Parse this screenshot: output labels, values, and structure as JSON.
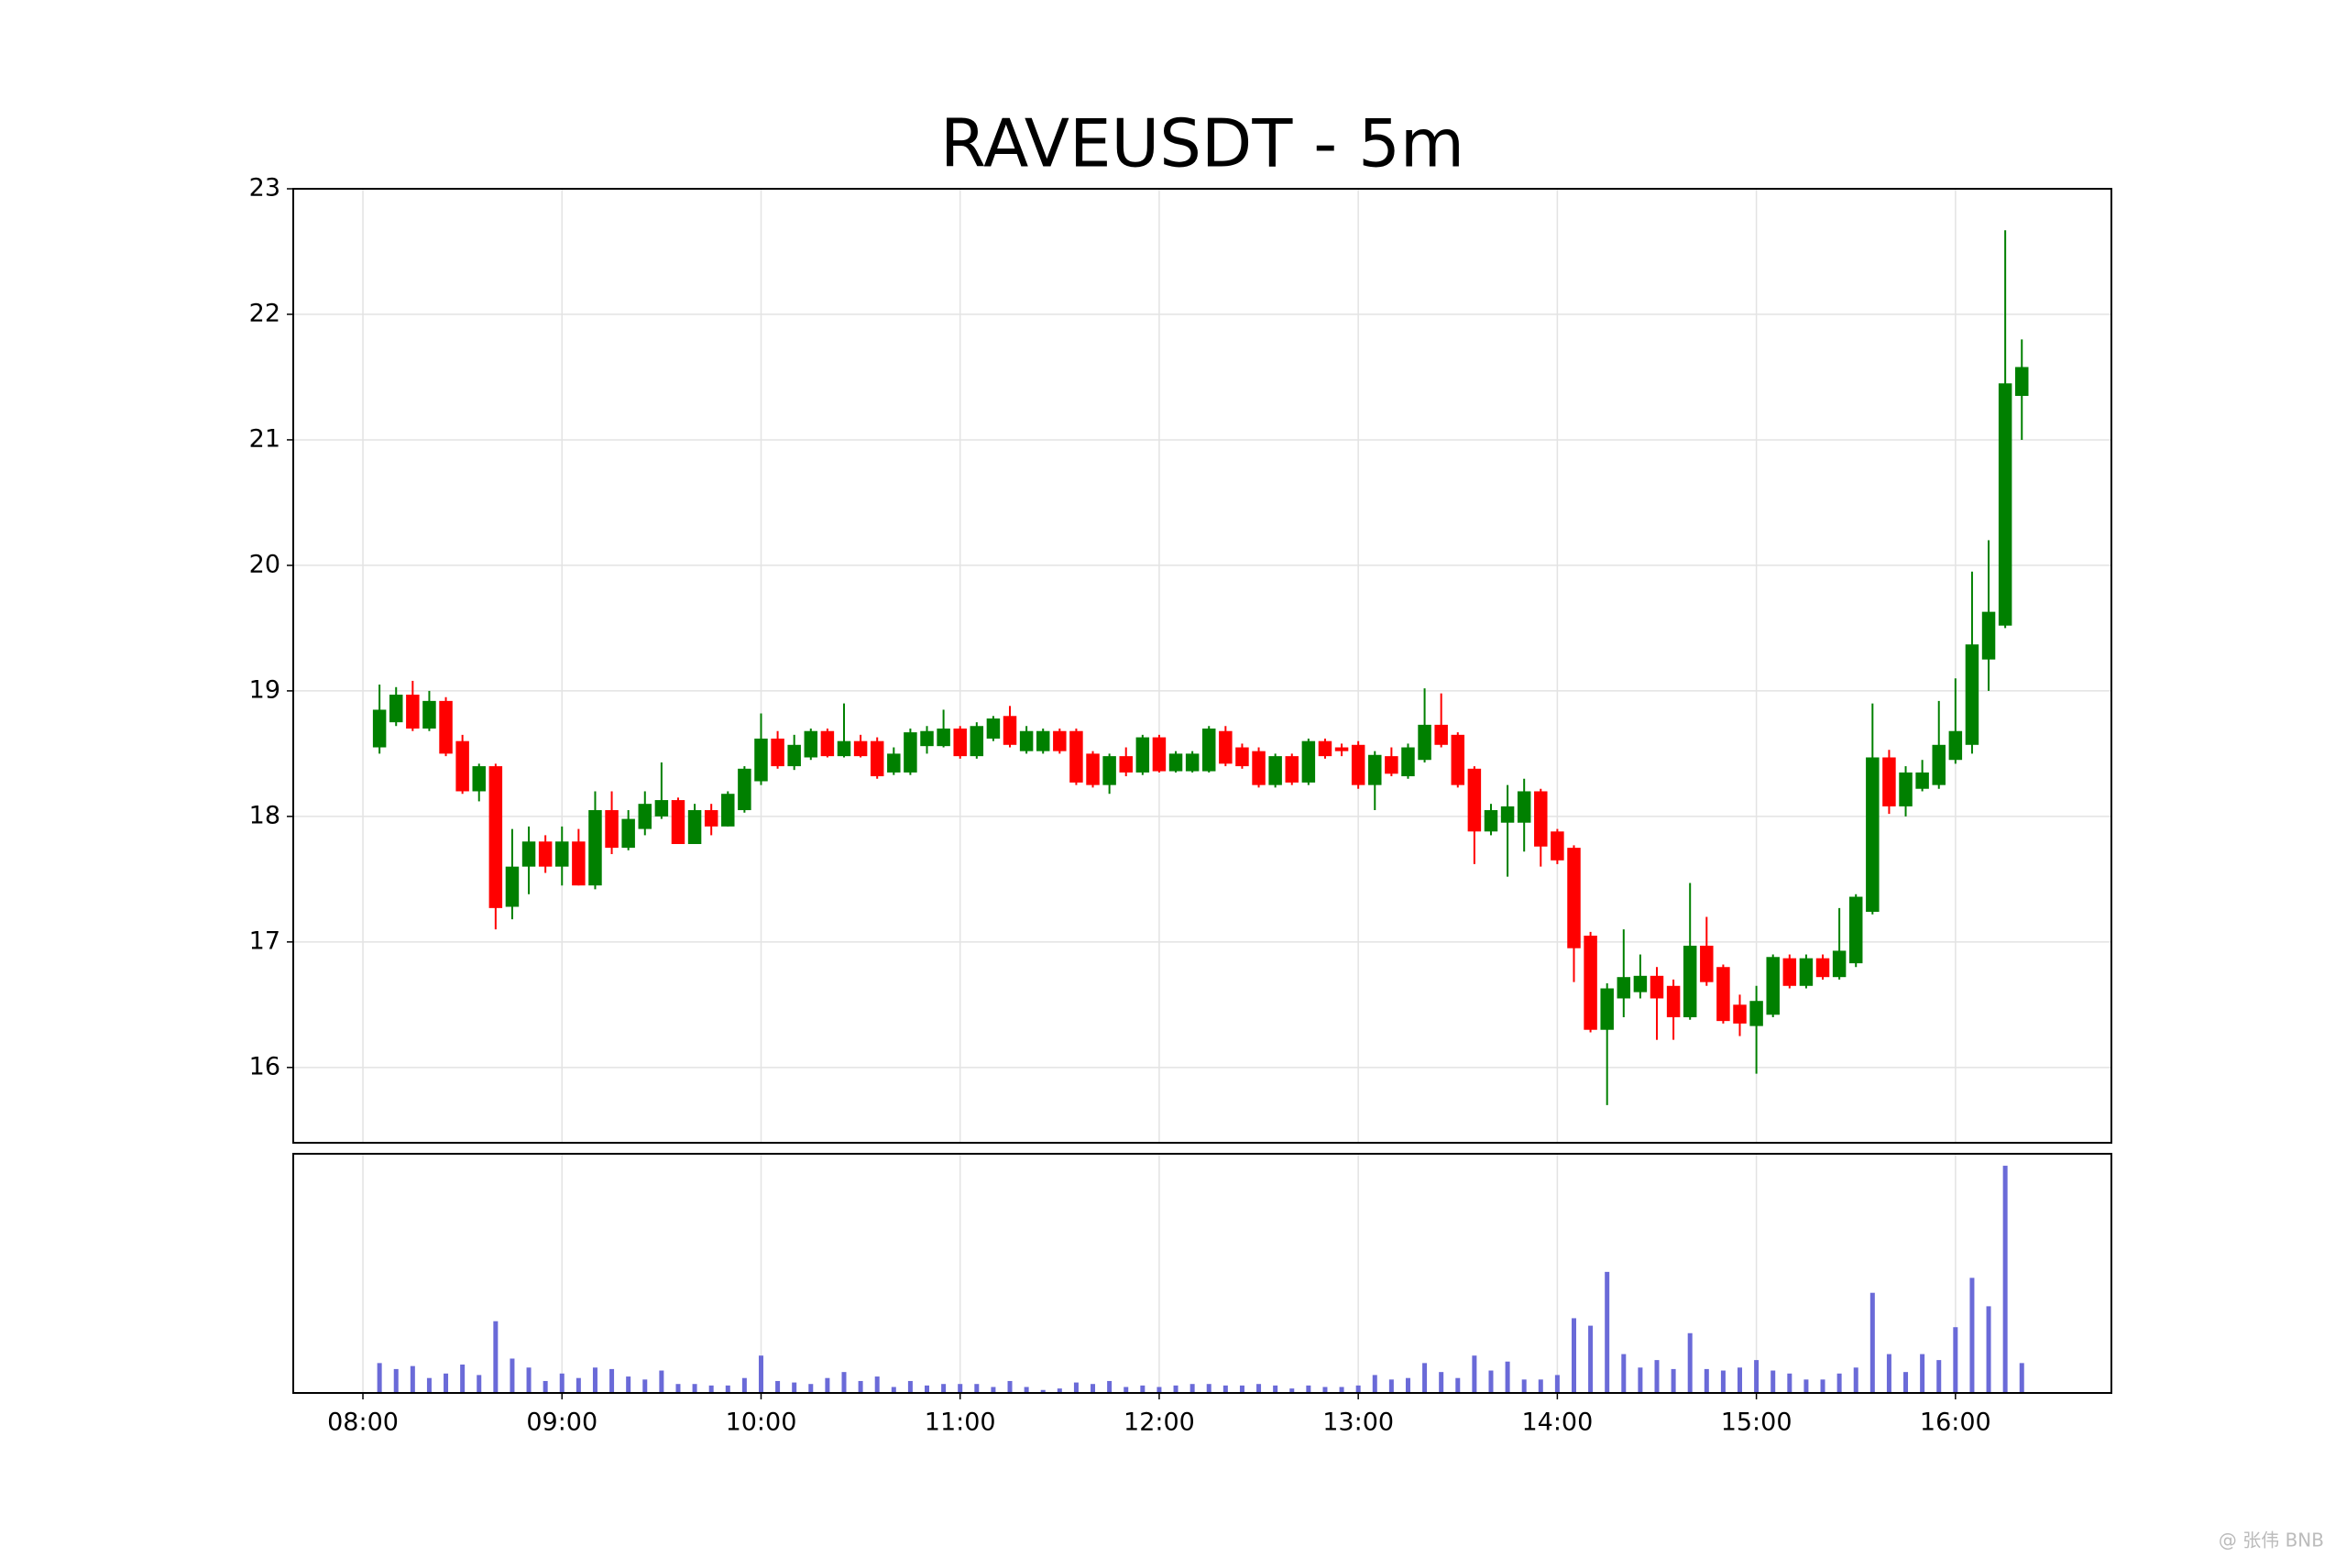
{
  "chart_data": {
    "type": "candlestick",
    "title": "RAVEUSDT - 5m",
    "watermark": "@ 张伟 BNB",
    "x": [
      "08:05",
      "08:10",
      "08:15",
      "08:20",
      "08:25",
      "08:30",
      "08:35",
      "08:40",
      "08:45",
      "08:50",
      "08:55",
      "09:00",
      "09:05",
      "09:10",
      "09:15",
      "09:20",
      "09:25",
      "09:30",
      "09:35",
      "09:40",
      "09:45",
      "09:50",
      "09:55",
      "10:00",
      "10:05",
      "10:10",
      "10:15",
      "10:20",
      "10:25",
      "10:30",
      "10:35",
      "10:40",
      "10:45",
      "10:50",
      "10:55",
      "11:00",
      "11:05",
      "11:10",
      "11:15",
      "11:20",
      "11:25",
      "11:30",
      "11:35",
      "11:40",
      "11:45",
      "11:50",
      "11:55",
      "12:00",
      "12:05",
      "12:10",
      "12:15",
      "12:20",
      "12:25",
      "12:30",
      "12:35",
      "12:40",
      "12:45",
      "12:50",
      "12:55",
      "13:00",
      "13:05",
      "13:10",
      "13:15",
      "13:20",
      "13:25",
      "13:30",
      "13:35",
      "13:40",
      "13:45",
      "13:50",
      "13:55",
      "14:00",
      "14:05",
      "14:10",
      "14:15",
      "14:20",
      "14:25",
      "14:30",
      "14:35",
      "14:40",
      "14:45",
      "14:50",
      "14:55",
      "15:00",
      "15:05",
      "15:10",
      "15:15",
      "15:20",
      "15:25",
      "15:30",
      "15:35",
      "15:40",
      "15:45",
      "15:50",
      "15:55",
      "16:00",
      "16:05",
      "16:10",
      "16:15",
      "16:20"
    ],
    "open": [
      18.55,
      18.75,
      18.97,
      18.7,
      18.92,
      18.6,
      18.2,
      18.4,
      17.28,
      17.6,
      17.8,
      17.6,
      17.8,
      17.45,
      18.05,
      17.75,
      17.9,
      18.0,
      18.13,
      17.78,
      18.05,
      17.92,
      18.05,
      18.28,
      18.62,
      18.4,
      18.47,
      18.68,
      18.48,
      18.6,
      18.6,
      18.35,
      18.35,
      18.56,
      18.56,
      18.7,
      18.48,
      18.62,
      18.8,
      18.52,
      18.52,
      18.68,
      18.68,
      18.5,
      18.25,
      18.48,
      18.35,
      18.63,
      18.36,
      18.36,
      18.36,
      18.68,
      18.55,
      18.52,
      18.25,
      18.48,
      18.27,
      18.6,
      18.55,
      18.57,
      18.25,
      18.48,
      18.32,
      18.45,
      18.73,
      18.65,
      18.38,
      17.88,
      17.95,
      17.95,
      18.2,
      17.88,
      17.75,
      17.05,
      16.3,
      16.55,
      16.6,
      16.73,
      16.65,
      16.4,
      16.97,
      16.8,
      16.5,
      16.33,
      16.42,
      16.87,
      16.65,
      16.87,
      16.72,
      16.83,
      17.24,
      18.47,
      18.08,
      18.22,
      18.25,
      18.45,
      18.57,
      19.25,
      19.52,
      21.35
    ],
    "high": [
      19.05,
      19.03,
      19.08,
      19.0,
      18.95,
      18.65,
      18.42,
      18.42,
      17.9,
      17.92,
      17.85,
      17.92,
      17.9,
      18.2,
      18.2,
      18.05,
      18.2,
      18.43,
      18.15,
      18.1,
      18.1,
      18.2,
      18.4,
      18.82,
      18.68,
      18.65,
      18.7,
      18.7,
      18.9,
      18.65,
      18.63,
      18.55,
      18.7,
      18.72,
      18.85,
      18.72,
      18.75,
      18.8,
      18.88,
      18.72,
      18.7,
      18.7,
      18.7,
      18.52,
      18.5,
      18.55,
      18.65,
      18.65,
      18.52,
      18.52,
      18.72,
      18.72,
      18.58,
      18.55,
      18.5,
      18.5,
      18.62,
      18.62,
      18.58,
      18.6,
      18.52,
      18.55,
      18.58,
      19.02,
      18.98,
      18.67,
      18.4,
      18.1,
      18.25,
      18.3,
      18.22,
      17.9,
      17.77,
      17.08,
      16.67,
      17.1,
      16.9,
      16.8,
      16.7,
      17.47,
      17.2,
      16.82,
      16.58,
      16.65,
      16.9,
      16.9,
      16.9,
      16.9,
      17.27,
      17.38,
      18.9,
      18.53,
      18.4,
      18.45,
      18.92,
      19.1,
      19.95,
      20.2,
      22.67,
      21.8
    ],
    "low": [
      18.5,
      18.72,
      18.68,
      18.68,
      18.48,
      18.18,
      18.12,
      17.1,
      17.18,
      17.38,
      17.55,
      17.45,
      17.45,
      17.42,
      17.7,
      17.73,
      17.85,
      17.98,
      17.78,
      17.78,
      17.85,
      17.92,
      18.03,
      18.25,
      18.38,
      18.37,
      18.45,
      18.47,
      18.47,
      18.47,
      18.3,
      18.33,
      18.33,
      18.5,
      18.55,
      18.46,
      18.46,
      18.6,
      18.55,
      18.5,
      18.5,
      18.5,
      18.25,
      18.23,
      18.18,
      18.32,
      18.33,
      18.35,
      18.35,
      18.35,
      18.35,
      18.4,
      18.38,
      18.23,
      18.23,
      18.25,
      18.25,
      18.46,
      18.48,
      18.22,
      18.05,
      18.32,
      18.3,
      18.43,
      18.55,
      18.23,
      17.62,
      17.85,
      17.52,
      17.72,
      17.6,
      17.62,
      16.68,
      16.28,
      15.7,
      16.4,
      16.55,
      16.22,
      16.22,
      16.38,
      16.65,
      16.35,
      16.25,
      15.95,
      16.4,
      16.63,
      16.63,
      16.7,
      16.7,
      16.8,
      17.22,
      18.02,
      18.0,
      18.2,
      18.22,
      18.42,
      18.5,
      19.0,
      19.5,
      21.0
    ],
    "close": [
      18.85,
      18.97,
      18.7,
      18.92,
      18.5,
      18.2,
      18.4,
      17.27,
      17.6,
      17.8,
      17.6,
      17.8,
      17.45,
      18.05,
      17.75,
      17.98,
      18.1,
      18.13,
      17.78,
      18.05,
      17.92,
      18.18,
      18.38,
      18.62,
      18.4,
      18.57,
      18.68,
      18.48,
      18.6,
      18.48,
      18.32,
      18.5,
      18.67,
      18.68,
      18.7,
      18.48,
      18.72,
      18.78,
      18.57,
      18.68,
      18.68,
      18.52,
      18.27,
      18.25,
      18.48,
      18.35,
      18.63,
      18.36,
      18.5,
      18.5,
      18.7,
      18.42,
      18.4,
      18.25,
      18.48,
      18.27,
      18.6,
      18.48,
      18.52,
      18.25,
      18.49,
      18.34,
      18.55,
      18.73,
      18.57,
      18.25,
      17.88,
      18.05,
      18.08,
      18.2,
      17.76,
      17.65,
      16.95,
      16.3,
      16.63,
      16.72,
      16.73,
      16.55,
      16.4,
      16.97,
      16.68,
      16.37,
      16.35,
      16.53,
      16.88,
      16.65,
      16.87,
      16.72,
      16.93,
      17.36,
      18.47,
      18.08,
      18.35,
      18.35,
      18.57,
      18.68,
      19.37,
      19.63,
      21.45,
      21.58
    ],
    "volume": [
      20,
      16,
      18,
      10,
      13,
      19,
      12,
      48,
      23,
      17,
      8,
      13,
      10,
      17,
      16,
      11,
      9,
      15,
      6,
      6,
      5,
      5,
      10,
      25,
      8,
      7,
      6,
      10,
      14,
      8,
      11,
      4,
      8,
      5,
      6,
      6,
      6,
      4,
      8,
      4,
      2,
      3,
      7,
      6,
      8,
      4,
      5,
      4,
      5,
      6,
      6,
      5,
      5,
      6,
      5,
      3,
      5,
      4,
      4,
      5,
      12,
      9,
      10,
      20,
      14,
      10,
      25,
      15,
      21,
      9,
      9,
      12,
      50,
      45,
      81,
      26,
      17,
      22,
      16,
      40,
      16,
      15,
      17,
      22,
      15,
      13,
      9,
      9,
      13,
      17,
      67,
      26,
      14,
      26,
      22,
      44,
      77,
      58,
      152,
      20
    ],
    "xlim": [
      "07:39",
      "16:47"
    ],
    "xticks": [
      "08:00",
      "09:00",
      "10:00",
      "11:00",
      "12:00",
      "13:00",
      "14:00",
      "15:00",
      "16:00"
    ],
    "ylim": [
      15.4,
      23
    ],
    "yticks": [
      16,
      17,
      18,
      19,
      20,
      21,
      22,
      23
    ],
    "volume_ylim": [
      0,
      160
    ],
    "grid": true,
    "up_color": "#008000",
    "down_color": "#ff0000",
    "volume_color": "#6a6ad8"
  }
}
